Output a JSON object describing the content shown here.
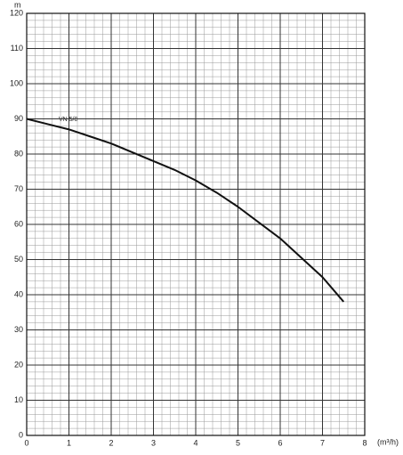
{
  "chart_data": {
    "type": "line",
    "y_label": "m",
    "x_label": "(m³/h)",
    "annotation": "VN 5/8",
    "series": [
      {
        "name": "VN 5/8",
        "color": "#111111",
        "x": [
          0,
          0.5,
          1,
          1.5,
          2,
          2.5,
          3,
          3.5,
          4,
          4.5,
          5,
          5.5,
          6,
          6.5,
          7,
          7.5
        ],
        "values": [
          90,
          88.5,
          87,
          85,
          83,
          80.5,
          78,
          75.5,
          72.5,
          69,
          65,
          60.5,
          56,
          50.5,
          45,
          38
        ]
      }
    ],
    "xlim": [
      0,
      8
    ],
    "xticks": [
      0,
      1,
      2,
      3,
      4,
      5,
      6,
      7,
      8
    ],
    "ylim": [
      0,
      120
    ],
    "yticks": [
      0,
      10,
      20,
      30,
      40,
      50,
      60,
      70,
      80,
      90,
      100,
      110,
      120
    ],
    "grid": true
  }
}
